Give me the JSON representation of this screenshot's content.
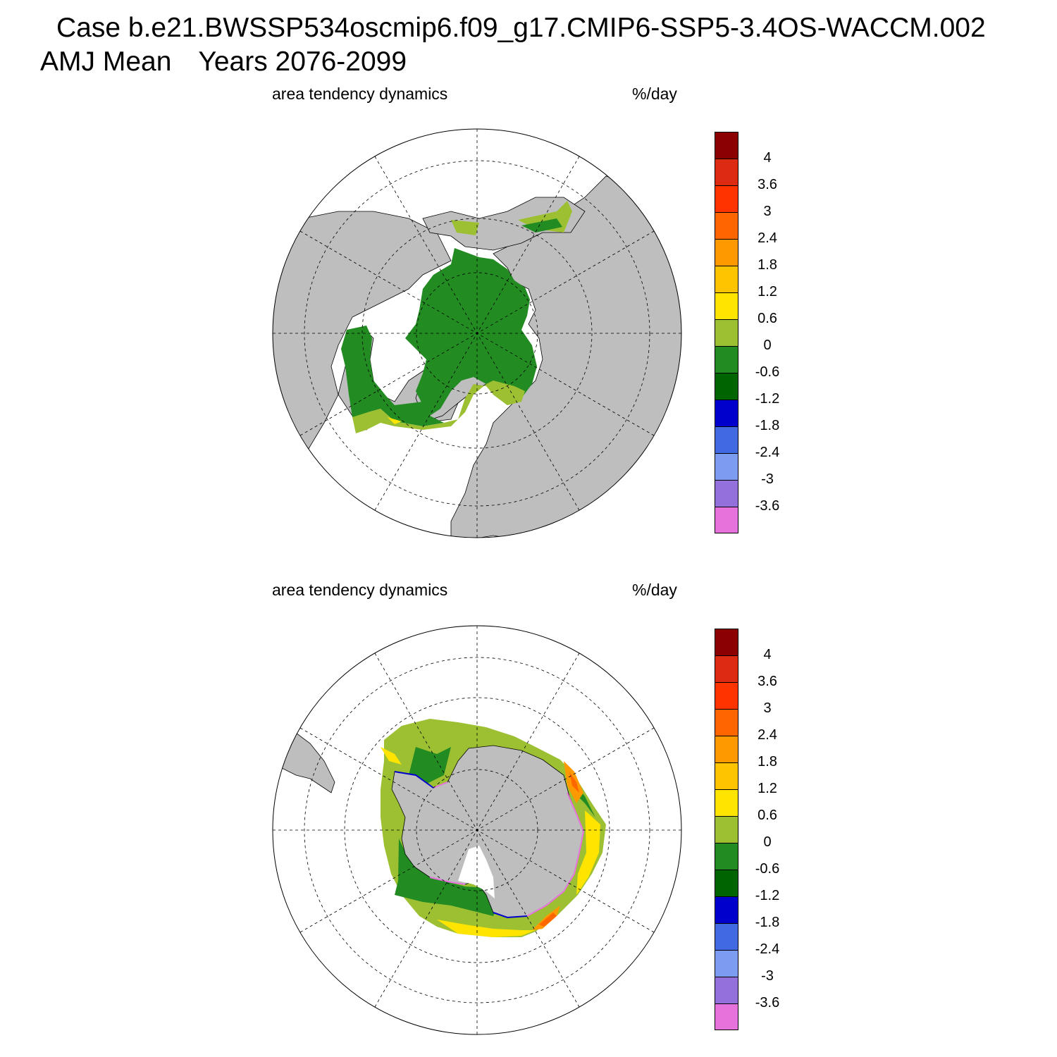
{
  "figure": {
    "title_line1": "Case b.e21.BWSSP534oscmip6.f09_g17.CMIP6-SSP5-3.4OS-WACCM.002",
    "title_line2_a": "AMJ Mean",
    "title_line2_b": "Years 2076-2099"
  },
  "panels": [
    {
      "id": "north",
      "variable": "area tendency dynamics",
      "units": "%/day"
    },
    {
      "id": "south",
      "variable": "area tendency dynamics",
      "units": "%/day"
    }
  ],
  "colorbar": {
    "tick_labels": [
      "4",
      "3.6",
      "3",
      "2.4",
      "1.8",
      "1.2",
      "0.6",
      "0",
      "-0.6",
      "-1.2",
      "-1.8",
      "-2.4",
      "-3",
      "-3.6"
    ],
    "colors_top_to_bottom": [
      "#8B0000",
      "#DD2A12",
      "#FF3300",
      "#FF6600",
      "#FF9900",
      "#FFC400",
      "#FFE400",
      "#9DC033",
      "#228B22",
      "#006400",
      "#0000CD",
      "#4169E1",
      "#7B9CF0",
      "#9370DB",
      "#E673DC"
    ]
  },
  "map_colors": {
    "land": "#BEBEBE",
    "ocean": "#FFFFFF",
    "ice_dark_green": "#228B22",
    "ice_light_green": "#9DC033",
    "ice_yellow": "#FFE400",
    "ice_orange": "#FF9900",
    "ice_red": "#FF6600",
    "edge_blue": "#0000CD",
    "edge_violet": "#E673DC"
  }
}
